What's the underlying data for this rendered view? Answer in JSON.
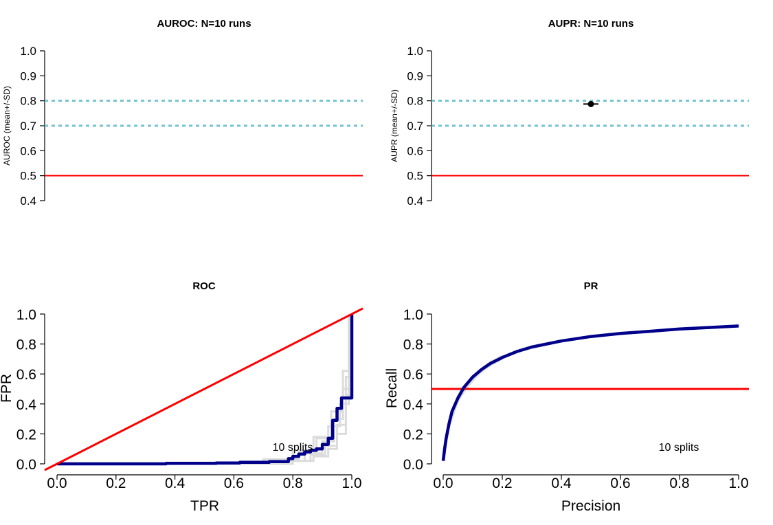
{
  "chart_data": [
    {
      "type": "scatter",
      "title": "AUROC: N=10 runs",
      "ylabel": "AUROC (mean+/-SD)",
      "ylim": [
        0.4,
        1.0
      ],
      "yticks": [
        "0.4",
        "0.5",
        "0.6",
        "0.7",
        "0.8",
        "0.9",
        "1.0"
      ],
      "points": [],
      "reference_lines": [
        {
          "y": 0.8,
          "style": "dotted",
          "color": "#74c3d0"
        },
        {
          "y": 0.7,
          "style": "dotted",
          "color": "#74c3d0"
        },
        {
          "y": 0.5,
          "style": "solid",
          "color": "#ff0000"
        }
      ]
    },
    {
      "type": "scatter",
      "title": "AUPR: N=10 runs",
      "ylabel": "AUPR (mean+/-SD)",
      "ylim": [
        0.4,
        1.0
      ],
      "yticks": [
        "0.4",
        "0.5",
        "0.6",
        "0.7",
        "0.8",
        "0.9",
        "1.0"
      ],
      "points": [
        {
          "mean": 0.787,
          "sd": 0.004
        }
      ],
      "reference_lines": [
        {
          "y": 0.8,
          "style": "dotted",
          "color": "#74c3d0"
        },
        {
          "y": 0.7,
          "style": "dotted",
          "color": "#74c3d0"
        },
        {
          "y": 0.5,
          "style": "solid",
          "color": "#ff0000"
        }
      ]
    },
    {
      "type": "line",
      "title": "ROC",
      "xlabel": "TPR",
      "ylabel": "FPR",
      "xlim": [
        0,
        1
      ],
      "ylim": [
        0,
        1
      ],
      "xticks": [
        "0.0",
        "0.2",
        "0.4",
        "0.6",
        "0.8",
        "1.0"
      ],
      "yticks": [
        "0.0",
        "0.2",
        "0.4",
        "0.6",
        "0.8",
        "1.0"
      ],
      "annotation": "10 splits",
      "reference_line": {
        "type": "diagonal",
        "color": "#ff0000"
      },
      "mean_curve": {
        "color": "#00008b",
        "x": [
          0,
          0.37,
          0.37,
          0.54,
          0.54,
          0.62,
          0.62,
          0.72,
          0.72,
          0.785,
          0.785,
          0.8,
          0.8,
          0.82,
          0.82,
          0.84,
          0.84,
          0.86,
          0.86,
          0.88,
          0.88,
          0.9,
          0.9,
          0.92,
          0.92,
          0.935,
          0.935,
          0.95,
          0.95,
          0.965,
          0.965,
          0.98,
          0.98,
          1.0,
          1.0
        ],
        "y": [
          0,
          0,
          0.003,
          0.003,
          0.006,
          0.006,
          0.01,
          0.01,
          0.015,
          0.015,
          0.035,
          0.035,
          0.05,
          0.05,
          0.065,
          0.065,
          0.08,
          0.08,
          0.09,
          0.09,
          0.1,
          0.1,
          0.13,
          0.13,
          0.17,
          0.17,
          0.29,
          0.29,
          0.37,
          0.37,
          0.44,
          0.44,
          0.44,
          0.44,
          1.0
        ]
      },
      "split_curves": {
        "color": "#dcdcdc",
        "curves": [
          {
            "x": [
              0,
              0.75,
              0.75,
              0.84,
              0.84,
              0.9,
              0.9,
              0.94,
              0.94,
              0.97,
              0.97,
              1.0,
              1.0
            ],
            "y": [
              0,
              0,
              0.02,
              0.02,
              0.07,
              0.07,
              0.15,
              0.15,
              0.3,
              0.3,
              0.5,
              0.5,
              1.0
            ]
          },
          {
            "x": [
              0,
              0.72,
              0.72,
              0.82,
              0.82,
              0.88,
              0.88,
              0.92,
              0.92,
              0.96,
              0.96,
              0.99,
              0.99
            ],
            "y": [
              0,
              0,
              0.03,
              0.03,
              0.08,
              0.08,
              0.17,
              0.17,
              0.25,
              0.25,
              0.4,
              0.4,
              1.0
            ]
          },
          {
            "x": [
              0,
              0.78,
              0.78,
              0.86,
              0.86,
              0.91,
              0.91,
              0.95,
              0.95,
              0.98,
              0.98,
              1.0,
              1.0
            ],
            "y": [
              0,
              0,
              0.02,
              0.02,
              0.06,
              0.06,
              0.12,
              0.12,
              0.26,
              0.26,
              0.58,
              0.58,
              1.0
            ]
          },
          {
            "x": [
              0,
              0.7,
              0.7,
              0.8,
              0.8,
              0.87,
              0.87,
              0.93,
              0.93,
              0.97,
              0.97,
              0.99,
              0.99
            ],
            "y": [
              0,
              0,
              0.03,
              0.03,
              0.09,
              0.09,
              0.18,
              0.18,
              0.35,
              0.35,
              0.62,
              0.62,
              1.0
            ]
          },
          {
            "x": [
              0,
              0.8,
              0.8,
              0.87,
              0.87,
              0.92,
              0.92,
              0.95,
              0.95,
              0.98,
              0.98,
              1.0,
              1.0
            ],
            "y": [
              0,
              0,
              0.02,
              0.02,
              0.05,
              0.05,
              0.1,
              0.1,
              0.2,
              0.2,
              0.46,
              0.46,
              1.0
            ]
          }
        ]
      }
    },
    {
      "type": "line",
      "title": "PR",
      "xlabel": "Precision",
      "ylabel": "Recall",
      "xlim": [
        0,
        1
      ],
      "ylim": [
        0,
        1
      ],
      "xticks": [
        "0.0",
        "0.2",
        "0.4",
        "0.6",
        "0.8",
        "1.0"
      ],
      "yticks": [
        "0.0",
        "0.2",
        "0.4",
        "0.6",
        "0.8",
        "1.0"
      ],
      "annotation": "10 splits",
      "reference_line": {
        "y": 0.5,
        "color": "#ff0000"
      },
      "mean_curve": {
        "color": "#00008b",
        "x": [
          0,
          0.005,
          0.01,
          0.02,
          0.03,
          0.05,
          0.07,
          0.1,
          0.13,
          0.16,
          0.2,
          0.25,
          0.3,
          0.4,
          0.5,
          0.6,
          0.7,
          0.8,
          0.9,
          1.0
        ],
        "y": [
          0.02,
          0.1,
          0.17,
          0.27,
          0.35,
          0.44,
          0.51,
          0.58,
          0.63,
          0.67,
          0.71,
          0.75,
          0.78,
          0.82,
          0.85,
          0.87,
          0.885,
          0.9,
          0.91,
          0.92
        ]
      },
      "split_curves": {
        "color": "#dcdcdc",
        "curves": [
          {
            "x": [
              0,
              0.02,
              0.05,
              0.08,
              0.12,
              0.16,
              0.2
            ],
            "y": [
              0.02,
              0.28,
              0.45,
              0.54,
              0.62,
              0.68,
              0.72
            ]
          },
          {
            "x": [
              0,
              0.02,
              0.05,
              0.08,
              0.12,
              0.16,
              0.2
            ],
            "y": [
              0.02,
              0.25,
              0.42,
              0.51,
              0.6,
              0.66,
              0.7
            ]
          }
        ]
      }
    }
  ]
}
